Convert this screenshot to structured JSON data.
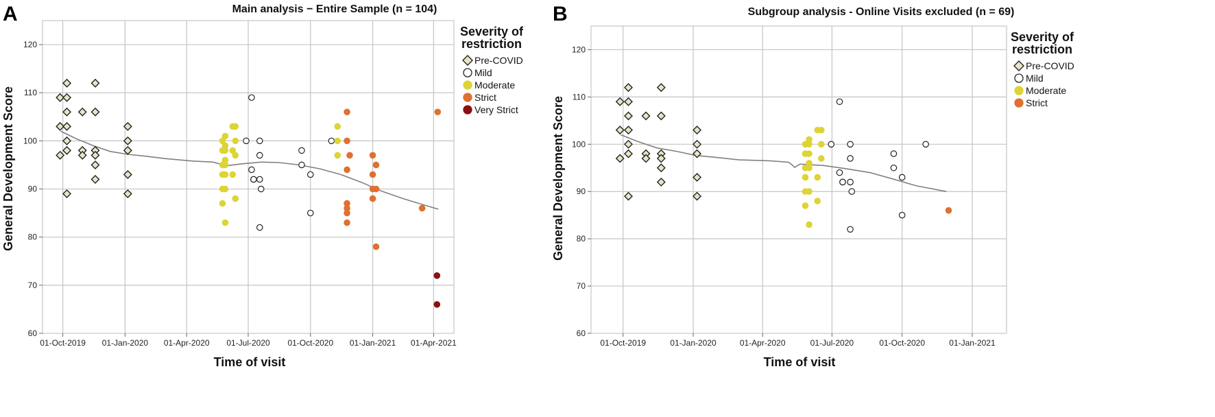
{
  "chart_data": [
    {
      "type": "scatter",
      "panel_letter": "A",
      "title": "Main analysis − Entire Sample (n = 104)",
      "xlabel": "Time of visit",
      "ylabel": "General Development Score",
      "ylim": [
        60,
        125
      ],
      "xlim": [
        "2019-09-01",
        "2021-05-01"
      ],
      "yticks": [
        60,
        70,
        80,
        90,
        100,
        110,
        120
      ],
      "xticks": [
        "2019-10-01",
        "2020-01-01",
        "2020-04-01",
        "2020-07-01",
        "2020-10-01",
        "2021-01-01",
        "2021-04-01"
      ],
      "xtick_labels": [
        "01-Oct-2019",
        "01-Jan-2020",
        "01-Apr-2020",
        "01-Jul-2020",
        "01-Oct-2020",
        "01-Jan-2021",
        "01-Apr-2021"
      ],
      "grid": true,
      "legend": {
        "title": "Severity of restriction",
        "title_lines": [
          "Severity of",
          "restriction"
        ],
        "position": "top-right",
        "entries": [
          "Pre-COVID",
          "Mild",
          "Moderate",
          "Strict",
          "Very Strict"
        ]
      },
      "series": [
        {
          "name": "Pre-COVID",
          "marker": "diamond",
          "color": "#e9e4c7",
          "stroke": "#222222",
          "points": [
            [
              "2019-09-27",
              109
            ],
            [
              "2019-09-27",
              103
            ],
            [
              "2019-09-27",
              97
            ],
            [
              "2019-10-07",
              112
            ],
            [
              "2019-10-07",
              109
            ],
            [
              "2019-10-07",
              106
            ],
            [
              "2019-10-07",
              103
            ],
            [
              "2019-10-07",
              100
            ],
            [
              "2019-10-07",
              98
            ],
            [
              "2019-10-07",
              89
            ],
            [
              "2019-10-30",
              106
            ],
            [
              "2019-10-30",
              98
            ],
            [
              "2019-10-30",
              97
            ],
            [
              "2019-11-18",
              112
            ],
            [
              "2019-11-18",
              106
            ],
            [
              "2019-11-18",
              98
            ],
            [
              "2019-11-18",
              97
            ],
            [
              "2019-11-18",
              95
            ],
            [
              "2019-11-18",
              92
            ],
            [
              "2020-01-05",
              103
            ],
            [
              "2020-01-05",
              100
            ],
            [
              "2020-01-05",
              98
            ],
            [
              "2020-01-05",
              93
            ],
            [
              "2020-01-05",
              89
            ]
          ]
        },
        {
          "name": "Mild",
          "marker": "circle",
          "color": "#ffffff",
          "stroke": "#222222",
          "points": [
            [
              "2020-06-28",
              100
            ],
            [
              "2020-07-06",
              109
            ],
            [
              "2020-07-06",
              94
            ],
            [
              "2020-07-09",
              92
            ],
            [
              "2020-07-09",
              92
            ],
            [
              "2020-07-18",
              100
            ],
            [
              "2020-07-18",
              97
            ],
            [
              "2020-07-18",
              92
            ],
            [
              "2020-07-20",
              90
            ],
            [
              "2020-07-18",
              82
            ],
            [
              "2020-09-18",
              98
            ],
            [
              "2020-09-18",
              95
            ],
            [
              "2020-10-01",
              93
            ],
            [
              "2020-10-01",
              85
            ],
            [
              "2020-11-01",
              100
            ]
          ]
        },
        {
          "name": "Moderate",
          "marker": "circle",
          "color": "#ddd435",
          "stroke": "#ddd435",
          "points": [
            [
              "2020-05-24",
              100
            ],
            [
              "2020-05-24",
              98
            ],
            [
              "2020-05-24",
              95
            ],
            [
              "2020-05-24",
              93
            ],
            [
              "2020-05-24",
              90
            ],
            [
              "2020-05-24",
              87
            ],
            [
              "2020-05-28",
              101
            ],
            [
              "2020-05-28",
              99
            ],
            [
              "2020-05-28",
              98
            ],
            [
              "2020-05-28",
              96
            ],
            [
              "2020-05-28",
              95
            ],
            [
              "2020-05-28",
              93
            ],
            [
              "2020-05-28",
              90
            ],
            [
              "2020-05-28",
              83
            ],
            [
              "2020-06-08",
              103
            ],
            [
              "2020-06-08",
              98
            ],
            [
              "2020-06-08",
              93
            ],
            [
              "2020-06-12",
              103
            ],
            [
              "2020-06-12",
              100
            ],
            [
              "2020-06-12",
              97
            ],
            [
              "2020-06-12",
              88
            ],
            [
              "2020-11-10",
              103
            ],
            [
              "2020-11-10",
              100
            ],
            [
              "2020-11-10",
              97
            ]
          ]
        },
        {
          "name": "Strict",
          "marker": "circle",
          "color": "#e07030",
          "stroke": "#e07030",
          "points": [
            [
              "2020-11-24",
              106
            ],
            [
              "2020-11-24",
              100
            ],
            [
              "2020-11-24",
              94
            ],
            [
              "2020-11-24",
              87
            ],
            [
              "2020-11-24",
              86
            ],
            [
              "2020-11-24",
              85
            ],
            [
              "2020-11-24",
              83
            ],
            [
              "2020-11-28",
              97
            ],
            [
              "2021-01-01",
              97
            ],
            [
              "2021-01-01",
              93
            ],
            [
              "2021-01-01",
              90
            ],
            [
              "2021-01-01",
              88
            ],
            [
              "2021-01-06",
              95
            ],
            [
              "2021-01-06",
              90
            ],
            [
              "2021-01-06",
              78
            ],
            [
              "2021-03-15",
              86
            ],
            [
              "2021-04-07",
              106
            ]
          ]
        },
        {
          "name": "Very Strict",
          "marker": "circle",
          "color": "#8b1010",
          "stroke": "#8b1010",
          "points": [
            [
              "2021-04-06",
              72
            ],
            [
              "2021-04-06",
              66
            ]
          ]
        }
      ],
      "trend_line": [
        [
          "2019-09-28",
          102
        ],
        [
          "2019-10-20",
          100.5
        ],
        [
          "2019-11-15",
          99
        ],
        [
          "2019-12-10",
          97.8
        ],
        [
          "2020-01-05",
          97.2
        ],
        [
          "2020-02-01",
          96.8
        ],
        [
          "2020-03-01",
          96.3
        ],
        [
          "2020-04-10",
          95.8
        ],
        [
          "2020-05-10",
          95.6
        ],
        [
          "2020-05-20",
          95.2
        ],
        [
          "2020-05-23",
          94.5
        ],
        [
          "2020-05-28",
          94.8
        ],
        [
          "2020-06-20",
          95.2
        ],
        [
          "2020-07-20",
          95.6
        ],
        [
          "2020-08-15",
          95.5
        ],
        [
          "2020-09-15",
          95
        ],
        [
          "2020-10-15",
          94.2
        ],
        [
          "2020-11-15",
          93
        ],
        [
          "2020-12-15",
          91.4
        ],
        [
          "2021-01-15",
          89.5
        ],
        [
          "2021-02-15",
          88
        ],
        [
          "2021-03-15",
          86.8
        ],
        [
          "2021-04-08",
          85.8
        ]
      ]
    },
    {
      "type": "scatter",
      "panel_letter": "B",
      "title": "Subgroup analysis - Online Visits excluded (n = 69)",
      "xlabel": "Time of visit",
      "ylabel": "General Development Score",
      "ylim": [
        60,
        125
      ],
      "xlim": [
        "2019-08-20",
        "2021-02-15"
      ],
      "yticks": [
        60,
        70,
        80,
        90,
        100,
        110,
        120
      ],
      "xticks": [
        "2019-10-01",
        "2020-01-01",
        "2020-04-01",
        "2020-07-01",
        "2020-10-01",
        "2021-01-01"
      ],
      "xtick_labels": [
        "01-Oct-2019",
        "01-Jan-2020",
        "01-Apr-2020",
        "01-Jul-2020",
        "01-Oct-2020",
        "01-Jan-2021"
      ],
      "grid": true,
      "legend": {
        "title": "Severity of restriction",
        "title_lines": [
          "Severity of",
          "restriction"
        ],
        "position": "top-right",
        "entries": [
          "Pre-COVID",
          "Mild",
          "Moderate",
          "Strict"
        ]
      },
      "series": [
        {
          "name": "Pre-COVID",
          "marker": "diamond",
          "color": "#e9e4c7",
          "stroke": "#222222",
          "points": [
            [
              "2019-09-27",
              109
            ],
            [
              "2019-09-27",
              103
            ],
            [
              "2019-09-27",
              97
            ],
            [
              "2019-10-08",
              112
            ],
            [
              "2019-10-08",
              109
            ],
            [
              "2019-10-08",
              106
            ],
            [
              "2019-10-08",
              103
            ],
            [
              "2019-10-08",
              100
            ],
            [
              "2019-10-08",
              98
            ],
            [
              "2019-10-08",
              89
            ],
            [
              "2019-10-31",
              106
            ],
            [
              "2019-10-31",
              98
            ],
            [
              "2019-10-31",
              97
            ],
            [
              "2019-11-20",
              112
            ],
            [
              "2019-11-20",
              106
            ],
            [
              "2019-11-20",
              98
            ],
            [
              "2019-11-20",
              97
            ],
            [
              "2019-11-20",
              95
            ],
            [
              "2019-11-20",
              92
            ],
            [
              "2020-01-06",
              103
            ],
            [
              "2020-01-06",
              100
            ],
            [
              "2020-01-06",
              98
            ],
            [
              "2020-01-06",
              93
            ],
            [
              "2020-01-06",
              89
            ]
          ]
        },
        {
          "name": "Mild",
          "marker": "circle",
          "color": "#ffffff",
          "stroke": "#222222",
          "points": [
            [
              "2020-06-30",
              100
            ],
            [
              "2020-07-11",
              109
            ],
            [
              "2020-07-11",
              94
            ],
            [
              "2020-07-15",
              92
            ],
            [
              "2020-07-15",
              92
            ],
            [
              "2020-07-25",
              100
            ],
            [
              "2020-07-25",
              97
            ],
            [
              "2020-07-25",
              92
            ],
            [
              "2020-07-27",
              90
            ],
            [
              "2020-07-25",
              82
            ],
            [
              "2020-09-20",
              98
            ],
            [
              "2020-09-20",
              95
            ],
            [
              "2020-10-01",
              93
            ],
            [
              "2020-10-01",
              85
            ],
            [
              "2020-11-01",
              100
            ]
          ]
        },
        {
          "name": "Moderate",
          "marker": "circle",
          "color": "#ddd435",
          "stroke": "#ddd435",
          "points": [
            [
              "2020-05-27",
              100
            ],
            [
              "2020-05-27",
              98
            ],
            [
              "2020-05-27",
              95
            ],
            [
              "2020-05-27",
              93
            ],
            [
              "2020-05-27",
              90
            ],
            [
              "2020-05-27",
              87
            ],
            [
              "2020-06-01",
              101
            ],
            [
              "2020-06-01",
              100
            ],
            [
              "2020-06-01",
              98
            ],
            [
              "2020-06-01",
              96
            ],
            [
              "2020-06-01",
              95
            ],
            [
              "2020-06-01",
              90
            ],
            [
              "2020-06-01",
              83
            ],
            [
              "2020-06-12",
              103
            ],
            [
              "2020-06-12",
              93
            ],
            [
              "2020-06-12",
              88
            ],
            [
              "2020-06-17",
              103
            ],
            [
              "2020-06-17",
              100
            ],
            [
              "2020-06-17",
              97
            ]
          ]
        },
        {
          "name": "Strict",
          "marker": "circle",
          "color": "#e07030",
          "stroke": "#e07030",
          "points": [
            [
              "2020-12-01",
              86
            ]
          ]
        }
      ],
      "trend_line": [
        [
          "2019-09-28",
          102
        ],
        [
          "2019-10-20",
          100.6
        ],
        [
          "2019-11-15",
          99.2
        ],
        [
          "2019-12-10",
          98.5
        ],
        [
          "2020-01-05",
          97.6
        ],
        [
          "2020-02-01",
          97.2
        ],
        [
          "2020-03-01",
          96.7
        ],
        [
          "2020-04-10",
          96.5
        ],
        [
          "2020-05-05",
          96.2
        ],
        [
          "2020-05-10",
          95.6
        ],
        [
          "2020-05-13",
          95.1
        ],
        [
          "2020-05-20",
          95.8
        ],
        [
          "2020-06-20",
          95.5
        ],
        [
          "2020-07-20",
          94.8
        ],
        [
          "2020-08-20",
          94
        ],
        [
          "2020-09-20",
          92.6
        ],
        [
          "2020-10-20",
          91.2
        ],
        [
          "2020-11-28",
          90
        ]
      ]
    }
  ]
}
